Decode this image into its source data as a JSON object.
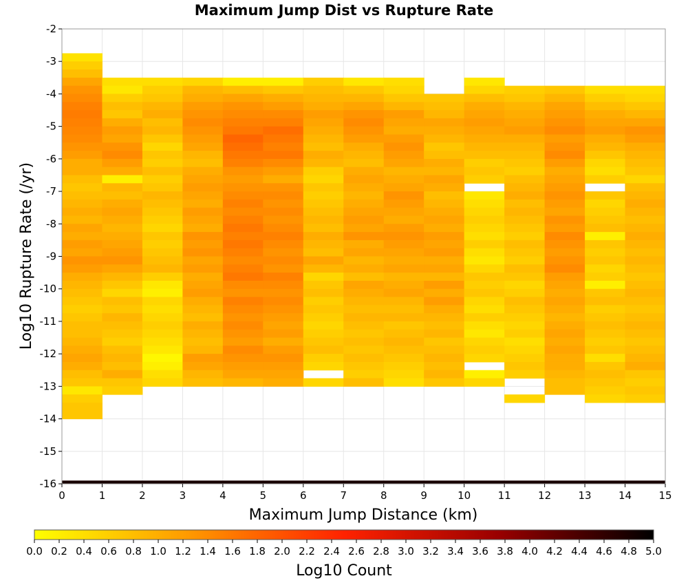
{
  "chart_data": {
    "type": "heatmap",
    "title": "Maximum Jump Dist vs Rupture Rate",
    "xlabel": "Maximum Jump Distance (km)",
    "ylabel": "Log10 Rupture Rate (/yr)",
    "xlim": [
      0,
      15
    ],
    "ylim": [
      -16,
      -2
    ],
    "x_ticks": [
      "0",
      "1",
      "2",
      "3",
      "4",
      "5",
      "6",
      "7",
      "8",
      "9",
      "10",
      "11",
      "12",
      "13",
      "14",
      "15"
    ],
    "y_ticks": [
      "-2",
      "-3",
      "-4",
      "-5",
      "-6",
      "-7",
      "-8",
      "-9",
      "-10",
      "-11",
      "-12",
      "-13",
      "-14",
      "-15",
      "-16"
    ],
    "x_bin_width": 1,
    "y_bin_height": 0.25,
    "colorbar": {
      "label": "Log10 Count",
      "range": [
        0,
        5
      ],
      "ticks": [
        "0.0",
        "0.2",
        "0.4",
        "0.6",
        "0.8",
        "1.0",
        "1.2",
        "1.4",
        "1.6",
        "1.8",
        "2.0",
        "2.2",
        "2.4",
        "2.6",
        "2.8",
        "3.0",
        "3.2",
        "3.4",
        "3.6",
        "3.8",
        "4.0",
        "4.2",
        "4.4",
        "4.6",
        "4.8",
        "5.0"
      ],
      "colors": [
        "#ffff00",
        "#ff9900",
        "#ff2200",
        "#990000",
        "#000000"
      ]
    },
    "grid": true,
    "columns": [
      {
        "x": 0,
        "top": -2.75,
        "values": [
          0.35,
          0.6,
          0.8,
          1.1,
          1.3,
          1.4,
          1.5,
          1.55,
          1.5,
          1.45,
          1.4,
          1.3,
          1.2,
          1.0,
          1.0,
          0.8,
          0.7,
          0.8,
          0.9,
          1.0,
          0.9,
          1.1,
          1.0,
          1.2,
          1.1,
          1.3,
          1.2,
          1.0,
          0.9,
          0.8,
          0.7,
          0.6,
          0.7,
          0.8,
          0.8,
          0.9,
          1.0,
          1.1,
          1.0,
          0.8,
          0.7,
          0.3,
          0.6,
          0.7,
          0.7
        ]
      },
      {
        "x": 1,
        "top": -3.5,
        "values": [
          0.4,
          0.3,
          0.6,
          0.8,
          0.7,
          1.0,
          1.2,
          1.1,
          1.3,
          1.4,
          1.2,
          1.0,
          0.2,
          0.9,
          0.8,
          1.0,
          1.1,
          1.0,
          0.9,
          1.0,
          1.1,
          1.2,
          1.3,
          1.1,
          0.9,
          0.7,
          0.5,
          0.8,
          0.7,
          0.9,
          0.8,
          0.7,
          0.6,
          0.8,
          0.9,
          0.8,
          1.0,
          0.7,
          0.6
        ]
      },
      {
        "x": 2,
        "top": -3.5,
        "values": [
          0.4,
          0.6,
          0.7,
          0.9,
          1.0,
          0.8,
          0.9,
          0.7,
          0.5,
          0.7,
          0.6,
          0.8,
          0.6,
          0.7,
          0.9,
          0.8,
          0.7,
          0.6,
          0.5,
          0.7,
          0.6,
          0.7,
          0.8,
          0.9,
          0.6,
          0.3,
          0.2,
          0.5,
          0.4,
          0.5,
          0.6,
          0.5,
          0.4,
          0.3,
          0.1,
          0.2,
          0.4,
          0.5
        ]
      },
      {
        "x": 3,
        "top": -3.5,
        "values": [
          0.5,
          0.9,
          1.0,
          1.2,
          1.3,
          1.4,
          1.3,
          1.2,
          1.1,
          0.9,
          0.8,
          1.0,
          1.1,
          1.2,
          1.1,
          1.0,
          1.2,
          1.1,
          1.0,
          1.3,
          1.2,
          1.3,
          1.1,
          1.2,
          1.0,
          1.1,
          1.2,
          1.0,
          0.9,
          0.8,
          1.0,
          0.9,
          0.8,
          0.9,
          1.2,
          1.1,
          0.9,
          0.8
        ]
      },
      {
        "x": 4,
        "top": -3.5,
        "values": [
          0.2,
          0.8,
          1.1,
          1.3,
          1.4,
          1.5,
          1.6,
          1.8,
          1.7,
          1.6,
          1.5,
          1.3,
          1.2,
          1.3,
          1.4,
          1.5,
          1.4,
          1.5,
          1.6,
          1.5,
          1.6,
          1.5,
          1.4,
          1.5,
          1.6,
          1.4,
          1.3,
          1.5,
          1.4,
          1.3,
          1.4,
          1.3,
          1.2,
          1.4,
          1.3,
          1.2,
          1.1,
          0.9
        ]
      },
      {
        "x": 5,
        "top": -3.5,
        "values": [
          0.2,
          0.7,
          1.0,
          1.2,
          1.4,
          1.5,
          1.7,
          1.6,
          1.5,
          1.6,
          1.4,
          1.2,
          1.0,
          1.3,
          1.4,
          1.3,
          1.4,
          1.3,
          1.4,
          1.5,
          1.4,
          1.3,
          1.4,
          1.3,
          1.5,
          1.4,
          1.3,
          1.4,
          1.3,
          1.2,
          1.1,
          1.2,
          1.0,
          1.2,
          1.3,
          1.2,
          1.1,
          1.0
        ]
      },
      {
        "x": 6,
        "top": -3.5,
        "values": [
          0.6,
          0.8,
          0.9,
          1.0,
          1.2,
          1.1,
          1.0,
          0.9,
          0.8,
          1.0,
          0.9,
          0.6,
          0.5,
          0.7,
          0.6,
          0.7,
          0.8,
          0.9,
          0.8,
          1.0,
          0.9,
          0.8,
          1.1,
          0.9,
          0.5,
          0.7,
          0.8,
          0.6,
          0.7,
          0.6,
          0.5,
          0.6,
          0.7,
          0.8,
          0.6,
          0.5,
          null,
          0.5
        ]
      },
      {
        "x": 7,
        "top": -3.5,
        "values": [
          0.3,
          0.7,
          0.9,
          1.1,
          1.3,
          1.4,
          1.3,
          1.2,
          1.0,
          0.9,
          0.8,
          1.0,
          1.1,
          1.0,
          0.9,
          1.0,
          1.1,
          1.2,
          1.1,
          1.3,
          1.0,
          1.1,
          0.9,
          1.0,
          0.8,
          1.1,
          1.0,
          0.9,
          0.8,
          0.9,
          0.8,
          0.7,
          0.8,
          0.7,
          0.8,
          0.7,
          0.6,
          0.8
        ]
      },
      {
        "x": 8,
        "top": -3.5,
        "values": [
          0.4,
          0.5,
          0.7,
          0.9,
          1.2,
          1.1,
          1.0,
          1.2,
          1.3,
          1.2,
          1.1,
          0.9,
          1.0,
          1.1,
          1.3,
          1.2,
          1.1,
          1.0,
          1.2,
          1.3,
          1.2,
          1.1,
          1.0,
          1.1,
          0.9,
          1.0,
          1.1,
          0.9,
          0.8,
          0.9,
          0.7,
          0.8,
          0.9,
          0.8,
          0.7,
          0.6,
          0.5,
          0.4
        ]
      },
      {
        "x": 9,
        "top": -4.0,
        "values": [
          0.7,
          0.8,
          0.9,
          1.1,
          1.0,
          0.9,
          0.7,
          0.8,
          1.0,
          0.9,
          1.1,
          1.0,
          0.8,
          0.9,
          1.0,
          1.1,
          1.0,
          1.2,
          1.1,
          1.2,
          1.0,
          1.1,
          0.9,
          1.2,
          1.0,
          1.2,
          1.0,
          0.9,
          0.8,
          0.9,
          0.7,
          0.8,
          0.9,
          0.8,
          0.9,
          0.7
        ]
      },
      {
        "x": 10,
        "top": -3.5,
        "values": [
          0.3,
          0.5,
          0.8,
          1.0,
          1.1,
          1.2,
          1.1,
          1.0,
          0.9,
          0.8,
          0.6,
          0.7,
          0.6,
          null,
          0.3,
          0.4,
          0.5,
          0.6,
          0.5,
          0.4,
          0.6,
          0.4,
          0.3,
          0.5,
          0.7,
          0.6,
          0.7,
          0.5,
          0.4,
          0.6,
          0.4,
          0.3,
          0.5,
          0.6,
          0.5,
          null,
          0.2,
          0.5
        ]
      },
      {
        "x": 11,
        "top": -3.75,
        "values": [
          0.6,
          0.7,
          0.9,
          1.0,
          1.1,
          1.2,
          1.0,
          0.9,
          0.8,
          0.7,
          0.6,
          0.8,
          0.9,
          1.0,
          0.8,
          0.9,
          0.8,
          0.7,
          0.6,
          0.8,
          0.7,
          0.6,
          0.8,
          0.7,
          0.5,
          0.6,
          0.8,
          0.7,
          0.6,
          0.5,
          0.6,
          0.4,
          0.5,
          0.6,
          0.7,
          0.6,
          null,
          null,
          0.5
        ]
      },
      {
        "x": 12,
        "top": -3.75,
        "values": [
          0.7,
          0.9,
          1.1,
          1.2,
          1.3,
          1.4,
          1.2,
          1.3,
          1.4,
          1.2,
          1.0,
          1.1,
          1.2,
          1.3,
          1.2,
          1.1,
          1.3,
          1.2,
          1.4,
          1.3,
          1.2,
          1.3,
          1.4,
          1.2,
          1.1,
          1.0,
          1.1,
          1.0,
          0.9,
          1.0,
          1.1,
          1.0,
          1.1,
          1.0,
          1.0,
          0.9,
          0.8,
          0.8
        ]
      },
      {
        "x": 13,
        "top": -3.75,
        "values": [
          0.4,
          0.6,
          0.8,
          1.0,
          1.1,
          1.2,
          1.0,
          0.9,
          0.7,
          0.5,
          0.4,
          0.6,
          null,
          0.7,
          0.5,
          0.6,
          0.7,
          0.8,
          0.2,
          0.7,
          0.6,
          0.7,
          0.5,
          0.6,
          0.2,
          0.7,
          0.8,
          0.6,
          0.7,
          0.8,
          0.7,
          0.6,
          0.7,
          0.4,
          0.7,
          0.8,
          0.7,
          0.6,
          0.5
        ]
      },
      {
        "x": 14,
        "top": -3.75,
        "values": [
          0.4,
          0.5,
          0.7,
          0.9,
          1.1,
          1.3,
          1.2,
          1.0,
          0.9,
          0.8,
          0.7,
          0.5,
          0.8,
          0.9,
          1.0,
          0.9,
          0.8,
          0.9,
          1.0,
          0.9,
          0.8,
          0.9,
          0.8,
          0.7,
          0.8,
          0.9,
          0.8,
          0.7,
          0.8,
          0.9,
          0.8,
          0.7,
          0.8,
          0.9,
          1.0,
          0.7,
          0.6,
          0.7,
          0.6
        ]
      }
    ],
    "bottom_row": {
      "y_from": -16,
      "y_to": -15.9,
      "value": 4.8
    }
  }
}
